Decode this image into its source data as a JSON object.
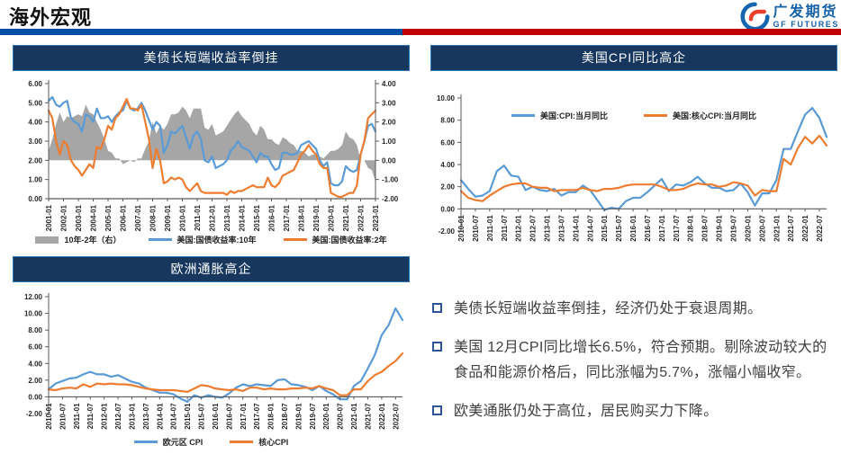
{
  "header": {
    "title": "海外宏观"
  },
  "logo": {
    "cn": "广发期货",
    "en": "GF FUTURES"
  },
  "colors": {
    "title_bar": "#17375e",
    "rule_blue": "#0051a5",
    "rule_red": "#c00000",
    "line_blue": "#5b9bd5",
    "line_orange": "#ed7d31",
    "area_gray": "#a6a6a6"
  },
  "chart_data": [
    {
      "id": "us-treasury-yields",
      "type": "line",
      "title": "美债长短端收益率倒挂",
      "ylim_left": [
        0,
        6
      ],
      "ylim_right": [
        -2,
        4
      ],
      "axis_cross": 0,
      "yticks_left": [
        "6.00",
        "5.00",
        "4.00",
        "3.00",
        "2.00",
        "1.00",
        "0.00"
      ],
      "yticks_right": [
        "4.00",
        "3.00",
        "2.00",
        "1.00",
        "0.00",
        "-1.00",
        "-2.00"
      ],
      "label_step": 4,
      "x_labels": [
        "2001-01",
        "2002-01",
        "2003-01",
        "2004-01",
        "2005-01",
        "2006-01",
        "2007-01",
        "2008-01",
        "2009-01",
        "2010-01",
        "2011-01",
        "2012-01",
        "2013-01",
        "2014-01",
        "2015-01",
        "2016-01",
        "2017-01",
        "2018-01",
        "2019-01",
        "2020-01",
        "2021-01",
        "2022-01",
        "2023-01"
      ],
      "series": [
        {
          "name": "10年-2年（右）",
          "color": "#a6a6a6",
          "type": "area",
          "axis": "right",
          "values": [
            0.5,
            1.1,
            1.9,
            2.5,
            2.0,
            2.3,
            2.2,
            2.3,
            2.4,
            2.3,
            2.9,
            2.5,
            2.4,
            2.0,
            1.6,
            1.1,
            0.5,
            0.4,
            0.1,
            0.1,
            -0.2,
            -0.1,
            0.0,
            -0.1,
            0.1,
            0.1,
            0.6,
            1.0,
            2.0,
            1.4,
            1.8,
            1.6,
            1.9,
            2.4,
            2.4,
            2.5,
            2.8,
            2.6,
            2.2,
            2.7,
            2.7,
            2.7,
            1.7,
            1.6,
            1.9,
            1.3,
            1.4,
            1.5,
            1.8,
            2.1,
            2.4,
            2.6,
            2.3,
            2.1,
            1.9,
            1.5,
            1.3,
            1.8,
            1.6,
            1.1,
            1.1,
            0.9,
            0.8,
            1.2,
            1.1,
            0.9,
            0.8,
            0.5,
            0.5,
            0.4,
            0.2,
            0.3,
            0.3,
            0.2,
            0.1,
            0.3,
            0.5,
            0.5,
            0.6,
            0.8,
            1.5,
            1.2,
            1.1,
            0.8,
            0.0,
            0.0,
            -0.4,
            -0.5,
            -1.1
          ]
        },
        {
          "name": "美国:国债收益率:10年",
          "color": "#5b9bd5",
          "type": "line",
          "axis": "left",
          "values": [
            5.1,
            5.3,
            4.9,
            4.8,
            5.0,
            5.1,
            4.2,
            4.0,
            3.9,
            3.5,
            4.4,
            4.3,
            4.0,
            4.7,
            4.2,
            4.2,
            4.3,
            4.0,
            4.3,
            4.5,
            4.6,
            5.1,
            4.7,
            4.6,
            4.7,
            5.0,
            4.6,
            4.1,
            3.6,
            4.0,
            3.8,
            2.4,
            2.8,
            3.5,
            3.4,
            3.6,
            3.8,
            3.2,
            2.6,
            3.3,
            3.5,
            3.1,
            2.0,
            1.9,
            2.2,
            1.6,
            1.7,
            1.8,
            2.0,
            2.5,
            2.7,
            3.0,
            2.7,
            2.6,
            2.5,
            2.2,
            1.9,
            2.4,
            2.2,
            2.2,
            1.8,
            1.5,
            1.6,
            2.4,
            2.4,
            2.3,
            2.3,
            2.4,
            2.8,
            2.9,
            3.0,
            2.8,
            2.6,
            2.0,
            1.7,
            1.9,
            0.8,
            0.7,
            0.7,
            0.9,
            1.7,
            1.5,
            1.4,
            1.5,
            2.3,
            3.0,
            3.8,
            3.9,
            3.5
          ]
        },
        {
          "name": "美国:国债收益率:2年",
          "color": "#ed7d31",
          "type": "line",
          "axis": "left",
          "values": [
            4.6,
            4.2,
            3.0,
            2.3,
            3.0,
            2.8,
            2.0,
            1.7,
            1.5,
            1.2,
            1.5,
            1.8,
            1.6,
            2.7,
            2.6,
            3.1,
            3.8,
            3.6,
            4.2,
            4.4,
            4.8,
            5.2,
            4.7,
            4.7,
            4.6,
            4.9,
            4.0,
            3.1,
            1.6,
            2.6,
            2.0,
            0.8,
            0.9,
            1.1,
            1.0,
            1.1,
            1.0,
            0.6,
            0.4,
            0.6,
            0.8,
            0.4,
            0.3,
            0.3,
            0.3,
            0.3,
            0.3,
            0.3,
            0.2,
            0.4,
            0.3,
            0.4,
            0.4,
            0.5,
            0.6,
            0.7,
            0.6,
            0.6,
            0.6,
            1.1,
            0.7,
            0.6,
            0.8,
            1.2,
            1.3,
            1.4,
            1.5,
            1.9,
            2.3,
            2.5,
            2.8,
            2.5,
            2.3,
            1.8,
            1.6,
            1.6,
            0.3,
            0.2,
            0.1,
            0.1,
            0.2,
            0.3,
            0.3,
            0.7,
            2.3,
            3.0,
            4.2,
            4.4,
            4.6
          ]
        }
      ]
    },
    {
      "id": "us-cpi",
      "type": "line",
      "title": "美国CPI同比高企",
      "ylim_left": [
        -2,
        10
      ],
      "axis_cross": 0,
      "yticks_left": [
        "10.00",
        "8.00",
        "6.00",
        "4.00",
        "2.00",
        "0.00",
        "-2.00"
      ],
      "label_step": 2,
      "x_labels": [
        "2010-01",
        "2010-07",
        "2011-01",
        "2011-07",
        "2012-01",
        "2012-07",
        "2013-01",
        "2013-07",
        "2014-01",
        "2014-07",
        "2015-01",
        "2015-07",
        "2016-01",
        "2016-07",
        "2017-01",
        "2017-07",
        "2018-01",
        "2018-07",
        "2019-01",
        "2019-07",
        "2020-01",
        "2020-07",
        "2021-01",
        "2021-07",
        "2022-01",
        "2022-07"
      ],
      "series": [
        {
          "name": "美国:CPI:当月同比",
          "color": "#5b9bd5",
          "type": "line",
          "axis": "left",
          "values": [
            2.6,
            1.8,
            1.1,
            1.2,
            1.6,
            3.4,
            3.9,
            3.0,
            2.9,
            1.7,
            2.0,
            1.7,
            1.6,
            1.8,
            1.2,
            1.5,
            1.5,
            2.1,
            1.7,
            0.8,
            -0.1,
            0.1,
            0.0,
            0.7,
            1.0,
            1.0,
            1.5,
            2.1,
            2.7,
            1.6,
            2.2,
            2.1,
            2.4,
            2.9,
            2.3,
            1.9,
            1.9,
            1.6,
            1.7,
            2.3,
            1.5,
            0.3,
            1.4,
            1.4,
            2.6,
            5.4,
            5.4,
            7.0,
            8.5,
            9.1,
            8.2,
            6.5
          ]
        },
        {
          "name": "美国:核心CPI:当月同比",
          "color": "#ed7d31",
          "type": "line",
          "axis": "left",
          "values": [
            1.6,
            1.0,
            0.8,
            0.7,
            1.2,
            1.6,
            2.0,
            2.2,
            2.3,
            2.3,
            2.0,
            1.9,
            1.9,
            1.6,
            1.7,
            1.7,
            1.7,
            1.9,
            1.7,
            1.6,
            1.8,
            1.8,
            1.9,
            2.1,
            2.2,
            2.2,
            2.2,
            2.2,
            2.0,
            1.7,
            1.7,
            1.8,
            2.1,
            2.3,
            2.2,
            2.2,
            2.0,
            2.1,
            2.4,
            2.3,
            2.1,
            1.2,
            1.7,
            1.6,
            1.6,
            4.5,
            4.0,
            5.5,
            6.5,
            5.9,
            6.6,
            5.7
          ]
        }
      ]
    },
    {
      "id": "eurozone-cpi",
      "type": "line",
      "title": "欧洲通胀高企",
      "ylim_left": [
        -2,
        12
      ],
      "axis_cross": 0,
      "yticks_left": [
        "12.00",
        "10.00",
        "8.00",
        "6.00",
        "4.00",
        "2.00",
        "0.00",
        "-2.00"
      ],
      "label_step": 2,
      "x_labels": [
        "2010-01",
        "2010-07",
        "2011-01",
        "2011-07",
        "2012-01",
        "2012-07",
        "2013-01",
        "2013-07",
        "2014-01",
        "2014-07",
        "2015-01",
        "2015-07",
        "2016-01",
        "2016-07",
        "2017-01",
        "2017-07",
        "2018-01",
        "2018-07",
        "2019-01",
        "2019-07",
        "2020-01",
        "2020-07",
        "2021-01",
        "2021-07",
        "2022-01",
        "2022-07"
      ],
      "series": [
        {
          "name": "欧元区 CPI",
          "color": "#5b9bd5",
          "type": "line",
          "axis": "left",
          "values": [
            0.9,
            1.6,
            1.9,
            2.2,
            2.3,
            2.7,
            3.0,
            2.7,
            2.7,
            2.4,
            2.6,
            2.2,
            1.8,
            1.6,
            1.1,
            0.8,
            0.5,
            0.5,
            0.3,
            -0.2,
            -0.6,
            0.2,
            -0.1,
            0.2,
            0.0,
            -0.1,
            0.4,
            1.1,
            1.5,
            1.3,
            1.5,
            1.4,
            1.3,
            2.0,
            2.1,
            1.5,
            1.4,
            1.2,
            0.8,
            1.3,
            0.7,
            0.3,
            -0.3,
            -0.3,
            1.3,
            1.9,
            3.4,
            5.0,
            7.4,
            8.6,
            10.6,
            9.2
          ]
        },
        {
          "name": "核心CPI",
          "color": "#ed7d31",
          "type": "line",
          "axis": "left",
          "values": [
            0.9,
            0.8,
            1.0,
            1.1,
            1.0,
            1.5,
            1.2,
            1.6,
            1.5,
            1.6,
            1.5,
            1.5,
            1.4,
            1.2,
            1.0,
            0.9,
            0.8,
            0.8,
            0.8,
            0.7,
            0.6,
            1.0,
            1.4,
            1.3,
            1.0,
            0.9,
            0.8,
            0.9,
            0.7,
            1.1,
            1.1,
            0.9,
            1.0,
            0.9,
            0.9,
            1.0,
            1.0,
            1.1,
            1.0,
            1.3,
            1.0,
            0.8,
            0.2,
            0.2,
            0.9,
            0.9,
            1.9,
            2.6,
            3.0,
            3.7,
            4.3,
            5.2
          ]
        }
      ]
    }
  ],
  "bullets": [
    "美债长短端收益率倒挂，经济仍处于衰退周期。",
    "美国 12月CPI同比增长6.5%，符合预期。剔除波动较大的食品和能源价格后，同比涨幅为5.7%，涨幅小幅收窄。",
    "欧美通胀仍处于高位，居民购买力下降。"
  ]
}
